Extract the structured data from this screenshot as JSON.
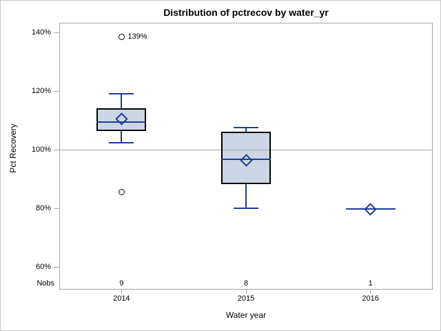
{
  "chart_data": {
    "type": "boxplot",
    "title": "Distribution of pctrecov by water_yr",
    "xlabel": "Water year",
    "ylabel": "Pct Recovery",
    "stat_row_label": "Nobs",
    "ylim": [
      52.3,
      143.3
    ],
    "y_ticks": [
      {
        "value": 140,
        "label": "140%"
      },
      {
        "value": 120,
        "label": "120%"
      },
      {
        "value": 100,
        "label": "100%"
      },
      {
        "value": 80,
        "label": "80%"
      },
      {
        "value": 60,
        "label": "60%"
      }
    ],
    "reference_line": {
      "value": 100
    },
    "grid": "off",
    "legend": "none",
    "categories": [
      "2014",
      "2015",
      "2016"
    ],
    "boxes": [
      {
        "category": "2014",
        "n": "9",
        "whisker_low": 102.5,
        "q1": 106.5,
        "median": 109.5,
        "q3": 114,
        "whisker_high": 119,
        "mean": 110.5,
        "outliers": [
          {
            "value": 138.5,
            "label": "139%"
          },
          {
            "value": 85.5,
            "label": ""
          }
        ]
      },
      {
        "category": "2015",
        "n": "8",
        "whisker_low": 80,
        "q1": 88.5,
        "median": 96.7,
        "q3": 106,
        "whisker_high": 107.5,
        "mean": 96.5,
        "outliers": []
      },
      {
        "category": "2016",
        "n": "1",
        "whisker_low": 79.8,
        "q1": 79.8,
        "median": 79.8,
        "q3": 79.8,
        "whisker_high": 79.8,
        "mean": 79.8,
        "outliers": []
      }
    ],
    "colors": {
      "box_fill": "#cdd6e4",
      "box_border": "#000000",
      "line_blue": "#1e3c99",
      "reference_line": "#a6a6a6",
      "frame": "#a6a6a6",
      "outlier_ring": "#000000",
      "text": "#000000"
    }
  }
}
